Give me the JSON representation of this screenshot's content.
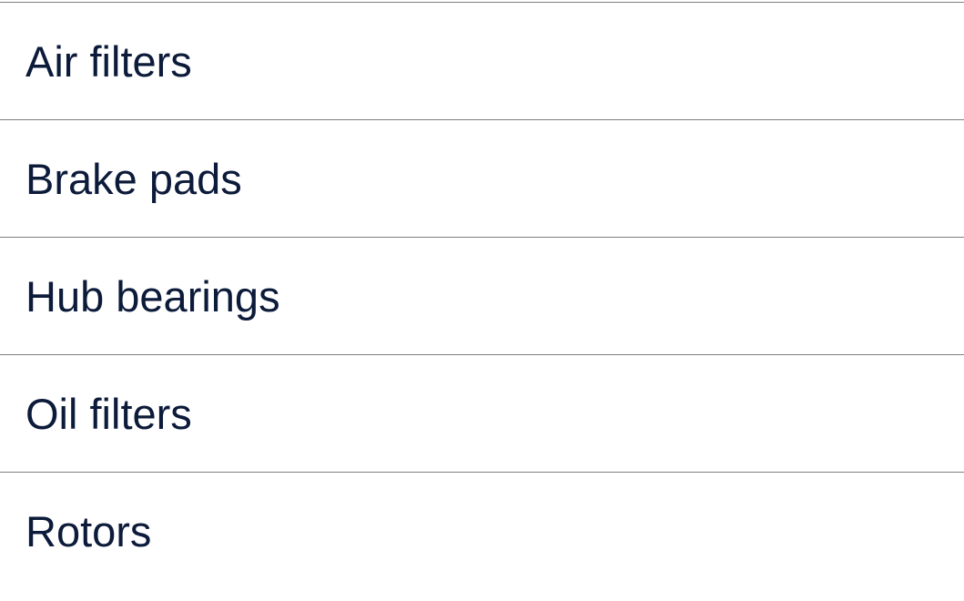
{
  "list": {
    "items": [
      {
        "label": "Air filters"
      },
      {
        "label": "Brake pads"
      },
      {
        "label": "Hub bearings"
      },
      {
        "label": "Oil filters"
      },
      {
        "label": "Rotors"
      }
    ]
  }
}
